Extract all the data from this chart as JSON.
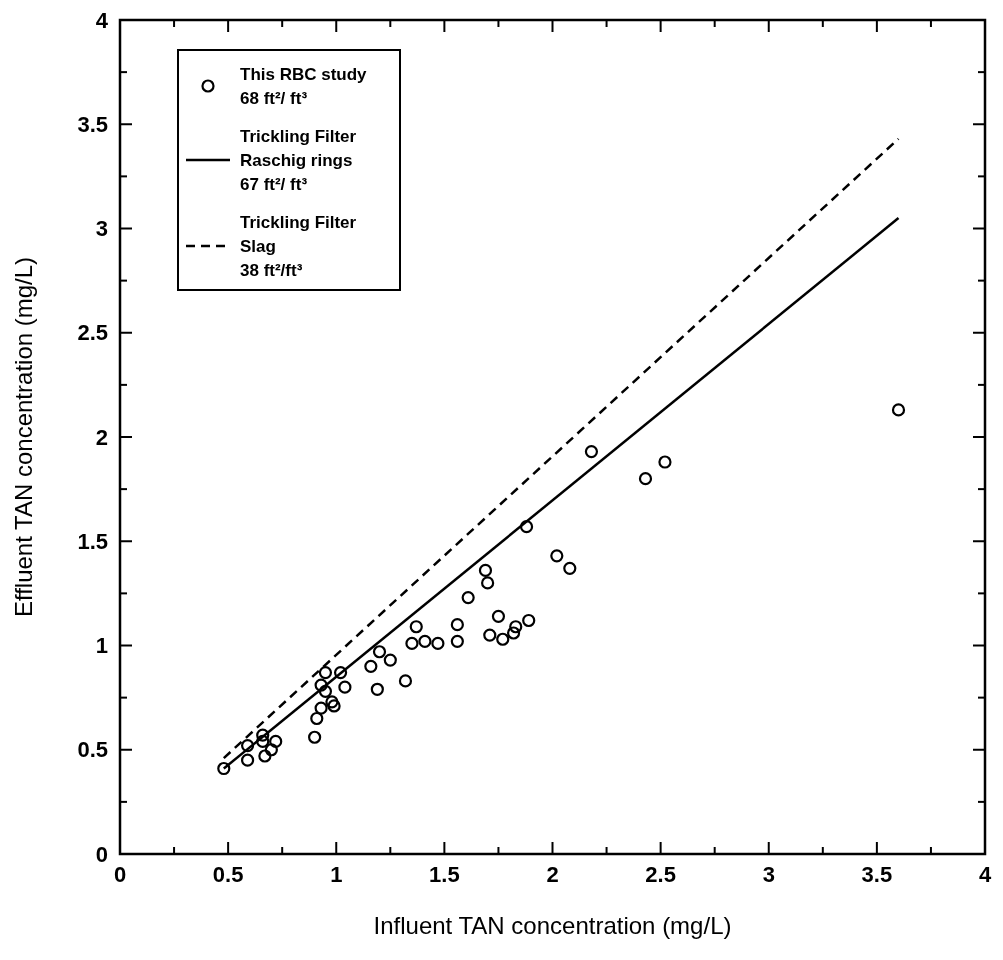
{
  "chart_data": {
    "type": "scatter",
    "xlabel": "Influent TAN concentration (mg/L)",
    "ylabel": "Effluent TAN concentration (mg/L)",
    "xlim": [
      0,
      4
    ],
    "ylim": [
      0,
      4
    ],
    "xticks": [
      0,
      {
        "value": 0.25,
        "label": null
      },
      0.5,
      {
        "value": 0.75,
        "label": null
      },
      1,
      {
        "value": 1.25,
        "label": null
      },
      1.5,
      {
        "value": 1.75,
        "label": null
      },
      2,
      {
        "value": 2.25,
        "label": null
      },
      2.5,
      {
        "value": 2.75,
        "label": null
      },
      3,
      {
        "value": 3.25,
        "label": null
      },
      3.5,
      {
        "value": 3.75,
        "label": null
      },
      4
    ],
    "yticks": [
      0,
      {
        "value": 0.25,
        "label": null
      },
      0.5,
      {
        "value": 0.75,
        "label": null
      },
      1,
      {
        "value": 1.25,
        "label": null
      },
      1.5,
      {
        "value": 1.75,
        "label": null
      },
      2,
      {
        "value": 2.25,
        "label": null
      },
      2.5,
      {
        "value": 2.75,
        "label": null
      },
      3,
      {
        "value": 3.25,
        "label": null
      },
      3.5,
      {
        "value": 3.75,
        "label": null
      },
      4
    ],
    "legend": "top left",
    "grid": false,
    "series": [
      {
        "name": "This RBC study\n68 ft²/ ft³",
        "type": "scatter",
        "marker": "circle",
        "color": "#000000",
        "x": [
          0.48,
          0.59,
          0.59,
          0.66,
          0.67,
          0.66,
          0.7,
          0.72,
          0.9,
          0.91,
          0.93,
          0.93,
          0.95,
          0.95,
          0.98,
          0.99,
          1.02,
          1.04,
          1.16,
          1.19,
          1.2,
          1.25,
          1.32,
          1.37,
          1.35,
          1.41,
          1.47,
          1.56,
          1.56,
          1.61,
          1.69,
          1.7,
          1.71,
          1.75,
          1.77,
          1.82,
          1.83,
          1.89,
          1.88,
          2.02,
          2.08,
          2.18,
          2.43,
          2.52,
          3.6
        ],
        "values": [
          0.41,
          0.52,
          0.45,
          0.57,
          0.47,
          0.54,
          0.5,
          0.54,
          0.56,
          0.65,
          0.7,
          0.81,
          0.87,
          0.78,
          0.73,
          0.71,
          0.87,
          0.8,
          0.9,
          0.79,
          0.97,
          0.93,
          0.83,
          1.09,
          1.01,
          1.02,
          1.01,
          1.1,
          1.02,
          1.23,
          1.36,
          1.3,
          1.05,
          1.14,
          1.03,
          1.06,
          1.09,
          1.12,
          1.57,
          1.43,
          1.37,
          1.93,
          1.8,
          1.88,
          2.13
        ]
      },
      {
        "name": "Trickling Filter\nRaschig rings\n67 ft²/ ft³",
        "type": "line",
        "line_style": "solid",
        "marker": "none",
        "color": "#000000",
        "x": [
          0.48,
          3.6
        ],
        "values": [
          0.41,
          3.05
        ]
      },
      {
        "name": "Trickling Filter\nSlag\n38 ft²/ft³",
        "type": "line",
        "line_style": "dashed",
        "marker": "none",
        "color": "#000000",
        "x": [
          0.48,
          3.6
        ],
        "values": [
          0.46,
          3.43
        ]
      }
    ]
  }
}
